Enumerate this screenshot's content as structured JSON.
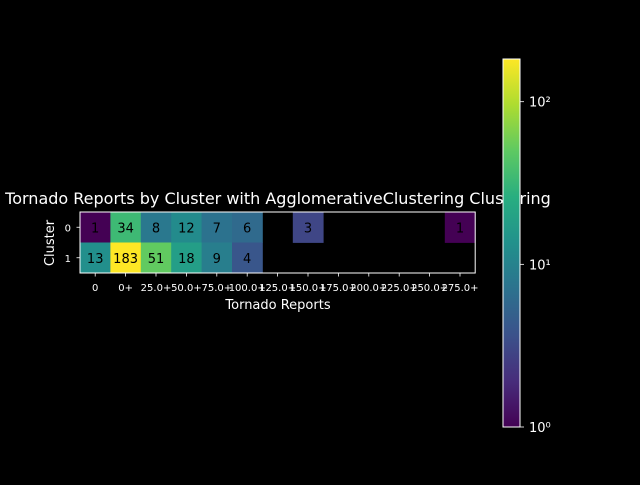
{
  "chart_data": {
    "type": "heatmap",
    "title": "Tornado Reports by Cluster with AgglomerativeClustering Clustering",
    "xlabel": "Tornado Reports",
    "ylabel": "Cluster",
    "x_categories": [
      "0",
      "0+",
      "25.0+",
      "50.0+",
      "75.0+",
      "100.0+",
      "125.0+",
      "150.0+",
      "175.0+",
      "200.0+",
      "225.0+",
      "250.0+",
      "275.0+"
    ],
    "y_categories": [
      "0",
      "1"
    ],
    "values": [
      [
        1,
        34,
        8,
        12,
        7,
        6,
        null,
        3,
        null,
        null,
        null,
        null,
        1
      ],
      [
        13,
        183,
        51,
        18,
        9,
        4,
        null,
        null,
        null,
        null,
        null,
        null,
        null
      ]
    ],
    "colorbar": {
      "scale": "log",
      "range": [
        1,
        183
      ],
      "ticks": [
        {
          "value": 1,
          "label": "10⁰"
        },
        {
          "value": 10,
          "label": "10¹"
        },
        {
          "value": 100,
          "label": "10²"
        }
      ],
      "colormap": "viridis"
    },
    "background": "#000000",
    "foreground": "#ffffff",
    "missing_color": "#000000"
  }
}
